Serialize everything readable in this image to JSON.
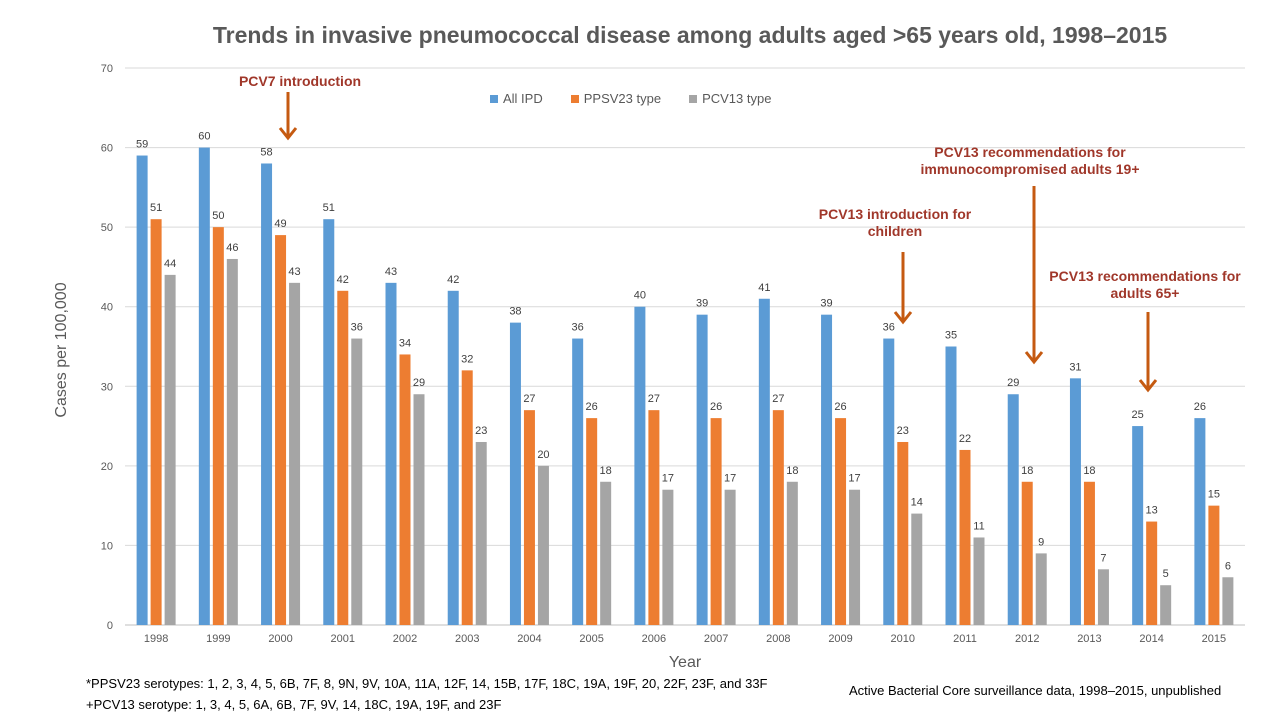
{
  "chart_data": {
    "type": "bar",
    "title": "Trends in invasive pneumococcal disease among adults aged >65 years old, 1998–2015",
    "xlabel": "Year",
    "ylabel": "Cases per 100,000",
    "ylim": [
      0,
      70
    ],
    "yticks": [
      0,
      10,
      20,
      30,
      40,
      50,
      60,
      70
    ],
    "grid": true,
    "legend": "top-center",
    "categories": [
      "1998",
      "1999",
      "2000",
      "2001",
      "2002",
      "2003",
      "2004",
      "2005",
      "2006",
      "2007",
      "2008",
      "2009",
      "2010",
      "2011",
      "2012",
      "2013",
      "2014",
      "2015"
    ],
    "series": [
      {
        "name": "All IPD",
        "color": "#5b9bd5",
        "values": [
          59,
          60,
          58,
          51,
          43,
          42,
          38,
          36,
          40,
          39,
          41,
          39,
          36,
          35,
          29,
          31,
          25,
          26
        ]
      },
      {
        "name": "PPSV23 type",
        "color": "#ed7d31",
        "values": [
          51,
          50,
          49,
          42,
          34,
          32,
          27,
          26,
          27,
          26,
          27,
          26,
          23,
          22,
          18,
          18,
          13,
          15
        ]
      },
      {
        "name": "PCV13 type",
        "color": "#a5a5a5",
        "values": [
          44,
          46,
          43,
          36,
          29,
          23,
          20,
          18,
          17,
          17,
          18,
          17,
          14,
          11,
          9,
          7,
          5,
          6
        ]
      }
    ],
    "annotations": [
      {
        "text": "PCV7 introduction",
        "year": "2000"
      },
      {
        "text": "PCV13 introduction for\nchildren",
        "year": "2010"
      },
      {
        "text": "PCV13 recommendations for\nimmunocompromised  adults 19+",
        "year": "2012"
      },
      {
        "text": "PCV13 recommendations for\nadults 65+",
        "year": "2014"
      }
    ],
    "annotation_color": "#a0372a",
    "arrow_color": "#c55a11"
  },
  "footnotes": {
    "ppsv23": "*PPSV23 serotypes: 1, 2, 3, 4, 5, 6B, 7F, 8, 9N, 9V, 10A, 11A, 12F, 14, 15B, 17F, 18C, 19A, 19F, 20, 22F, 23F, and 33F",
    "pcv13": "+PCV13 serotype: 1, 3, 4, 5, 6A, 6B, 7F, 9V, 14, 18C, 19A, 19F, and 23F",
    "source": "Active Bacterial Core surveillance data, 1998–2015, unpublished"
  }
}
